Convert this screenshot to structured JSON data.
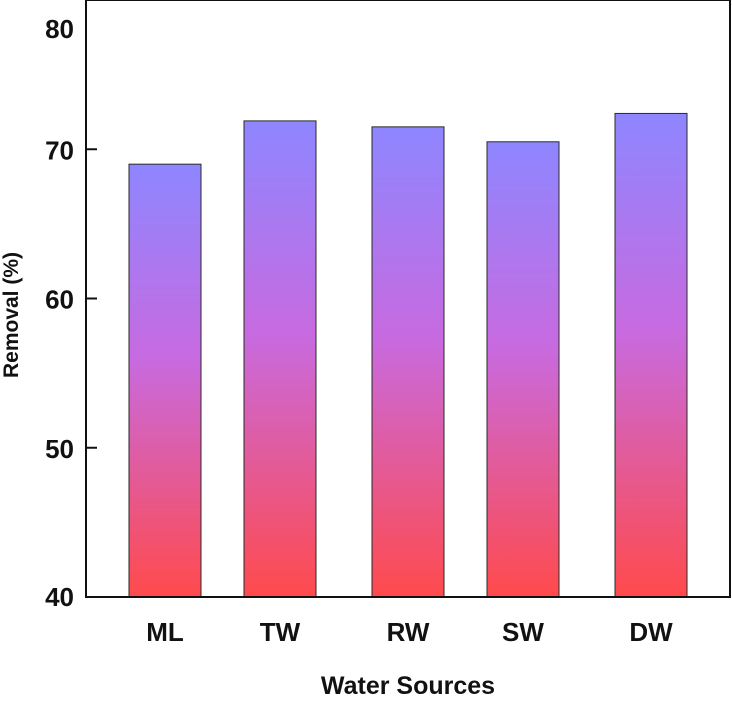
{
  "chart_data": {
    "type": "bar",
    "categories": [
      "ML",
      "TW",
      "RW",
      "SW",
      "DW"
    ],
    "values": [
      69.0,
      71.9,
      71.5,
      70.5,
      72.4
    ],
    "xlabel": "Water Sources",
    "ylabel": "Removal (%)",
    "ylim": [
      40,
      80
    ],
    "yticks": [
      40,
      50,
      60,
      70,
      80
    ],
    "grid": false,
    "legend": "none",
    "colors": {
      "bar_top": "#8e86ff",
      "bar_mid": "#c86ae0",
      "bar_bottom": "#ff4a4c",
      "axis": "#111111"
    }
  }
}
